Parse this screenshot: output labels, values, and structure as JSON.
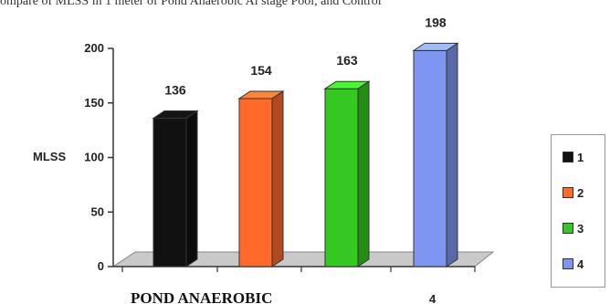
{
  "caption": "ompare of MLSS in 1 meter of Pond Anaerobic Al stage Pool, and Control",
  "chart_data": {
    "type": "bar",
    "categories": [
      "1",
      "2",
      "3",
      "4"
    ],
    "values": [
      136,
      154,
      163,
      198
    ],
    "colors": [
      "#111111",
      "#ff6a2a",
      "#35c820",
      "#7f96f0"
    ],
    "xlabel": "POND ANAEROBIC",
    "ylabel": "MLSS",
    "ylim": [
      0,
      200
    ],
    "yticks": [
      "0",
      "50",
      "100",
      "150",
      "200"
    ],
    "xtick_labels": [
      "4"
    ],
    "legend": {
      "position": "right",
      "entries": [
        "1",
        "2",
        "3",
        "4"
      ]
    },
    "grid": false,
    "style": "3d"
  }
}
